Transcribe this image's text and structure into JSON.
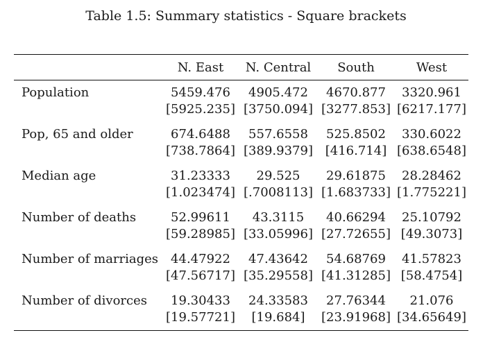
{
  "caption": "Table 1.5: Summary statistics - Square brackets",
  "columns": [
    "",
    "N. East",
    "N. Central",
    "South",
    "West"
  ],
  "rows": [
    {
      "label": "Population",
      "values": [
        "5459.476",
        "4905.472",
        "4670.877",
        "3320.961"
      ],
      "brackets": [
        "[5925.235]",
        "[3750.094]",
        "[3277.853]",
        "[6217.177]"
      ]
    },
    {
      "label": "Pop, 65 and older",
      "values": [
        "674.6488",
        "557.6558",
        "525.8502",
        "330.6022"
      ],
      "brackets": [
        "[738.7864]",
        "[389.9379]",
        "[416.714]",
        "[638.6548]"
      ]
    },
    {
      "label": "Median age",
      "values": [
        "31.23333",
        "29.525",
        "29.61875",
        "28.28462"
      ],
      "brackets": [
        "[1.023474]",
        "[.7008113]",
        "[1.683733]",
        "[1.775221]"
      ]
    },
    {
      "label": "Number of deaths",
      "values": [
        "52.99611",
        "43.3115",
        "40.66294",
        "25.10792"
      ],
      "brackets": [
        "[59.28985]",
        "[33.05996]",
        "[27.72655]",
        "[49.3073]"
      ]
    },
    {
      "label": "Number of marriages",
      "values": [
        "44.47922",
        "47.43642",
        "54.68769",
        "41.57823"
      ],
      "brackets": [
        "[47.56717]",
        "[35.29558]",
        "[41.31285]",
        "[58.4754]"
      ]
    },
    {
      "label": "Number of divorces",
      "values": [
        "19.30433",
        "24.33583",
        "27.76344",
        "21.076"
      ],
      "brackets": [
        "[19.57721]",
        "[19.684]",
        "[23.91968]",
        "[34.65649]"
      ]
    }
  ]
}
